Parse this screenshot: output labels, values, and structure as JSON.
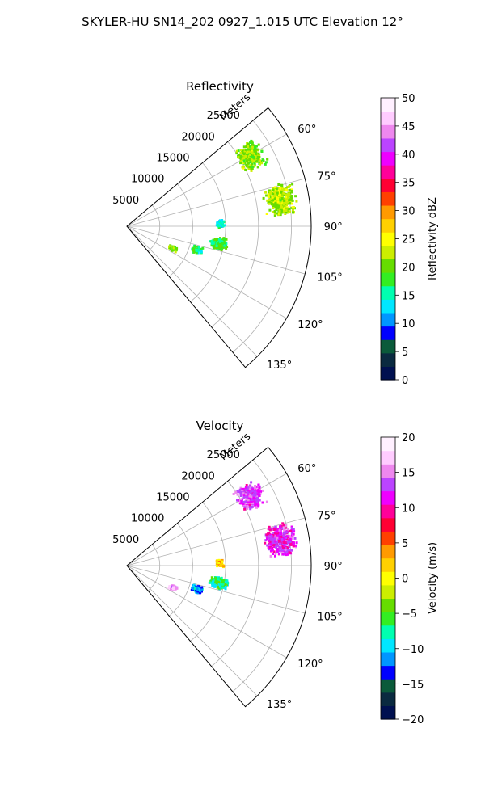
{
  "suptitle": "SKYLER-HU  SN14_202  0927_1.015 UTC Elevation 12°",
  "chart_data": [
    {
      "type": "polar_sector",
      "title": "Reflectivity",
      "radial_axis_label": "Meters",
      "radial_ticks": [
        5000,
        10000,
        15000,
        20000,
        25000
      ],
      "radial_tick_labels": [
        "5000",
        "10000",
        "15000",
        "20000",
        "25000"
      ],
      "r_max": 28000,
      "angle_range_deg": [
        50,
        140
      ],
      "angle_ticks": [
        60,
        75,
        90,
        105,
        120,
        135
      ],
      "angle_tick_labels": [
        "60°",
        "75°",
        "90°",
        "105°",
        "120°",
        "135°"
      ],
      "grid": true,
      "colorbar": {
        "label": "Reflectivity dBZ",
        "range": [
          0,
          50
        ],
        "ticks": [
          0,
          5,
          10,
          15,
          20,
          25,
          30,
          35,
          40,
          45,
          50
        ],
        "tick_labels": [
          "0",
          "5",
          "10",
          "15",
          "20",
          "25",
          "30",
          "35",
          "40",
          "45",
          "50"
        ],
        "colormap": [
          "#001050",
          "#0a2a40",
          "#0a5a3a",
          "#0000ff",
          "#0096ff",
          "#00e6ff",
          "#00ffb0",
          "#33ee22",
          "#66dd00",
          "#ccee00",
          "#ffff00",
          "#ffd000",
          "#ff9a00",
          "#ff4000",
          "#ff0033",
          "#ff0099",
          "#ee00ff",
          "#bb44ff",
          "#ee88ee",
          "#ffccff",
          "#fff0ff"
        ]
      },
      "echo_regions": [
        {
          "az_deg": 60,
          "range_m": 21500,
          "value": 21
        },
        {
          "az_deg": 80,
          "range_m": 23500,
          "value": 22
        },
        {
          "az_deg": 88,
          "range_m": 14000,
          "value": 14
        },
        {
          "az_deg": 100,
          "range_m": 14000,
          "value": 18
        },
        {
          "az_deg": 115,
          "range_m": 7500,
          "value": 20
        },
        {
          "az_deg": 108,
          "range_m": 11000,
          "value": 17
        }
      ]
    },
    {
      "type": "polar_sector",
      "title": "Velocity",
      "radial_axis_label": "Meters",
      "radial_ticks": [
        5000,
        10000,
        15000,
        20000,
        25000
      ],
      "radial_tick_labels": [
        "5000",
        "10000",
        "15000",
        "20000",
        "25000"
      ],
      "r_max": 28000,
      "angle_range_deg": [
        50,
        140
      ],
      "angle_ticks": [
        60,
        75,
        90,
        105,
        120,
        135
      ],
      "angle_tick_labels": [
        "60°",
        "75°",
        "90°",
        "105°",
        "120°",
        "135°"
      ],
      "grid": true,
      "colorbar": {
        "label": "Velocity (m/s)",
        "range": [
          -20,
          20
        ],
        "ticks": [
          -20,
          -15,
          -10,
          -5,
          0,
          5,
          10,
          15,
          20
        ],
        "tick_labels": [
          "−20",
          "−15",
          "−10",
          "−5",
          "0",
          "5",
          "10",
          "15",
          "20"
        ],
        "colormap": [
          "#001050",
          "#0a2a40",
          "#0a5a3a",
          "#0000ff",
          "#0096ff",
          "#00e6ff",
          "#00ffb0",
          "#33ee22",
          "#66dd00",
          "#ccee00",
          "#ffff00",
          "#ffd000",
          "#ff9a00",
          "#ff4000",
          "#ff0033",
          "#ff0099",
          "#ee00ff",
          "#bb44ff",
          "#ee88ee",
          "#ffccff",
          "#fff0ff"
        ]
      },
      "echo_regions": [
        {
          "az_deg": 60,
          "range_m": 21500,
          "value": 13
        },
        {
          "az_deg": 80,
          "range_m": 23500,
          "value": 12
        },
        {
          "az_deg": 88,
          "range_m": 14000,
          "value": 2
        },
        {
          "az_deg": 100,
          "range_m": 14000,
          "value": -7
        },
        {
          "az_deg": 115,
          "range_m": 7500,
          "value": 16
        },
        {
          "az_deg": 108,
          "range_m": 11000,
          "value": -11
        }
      ]
    }
  ]
}
